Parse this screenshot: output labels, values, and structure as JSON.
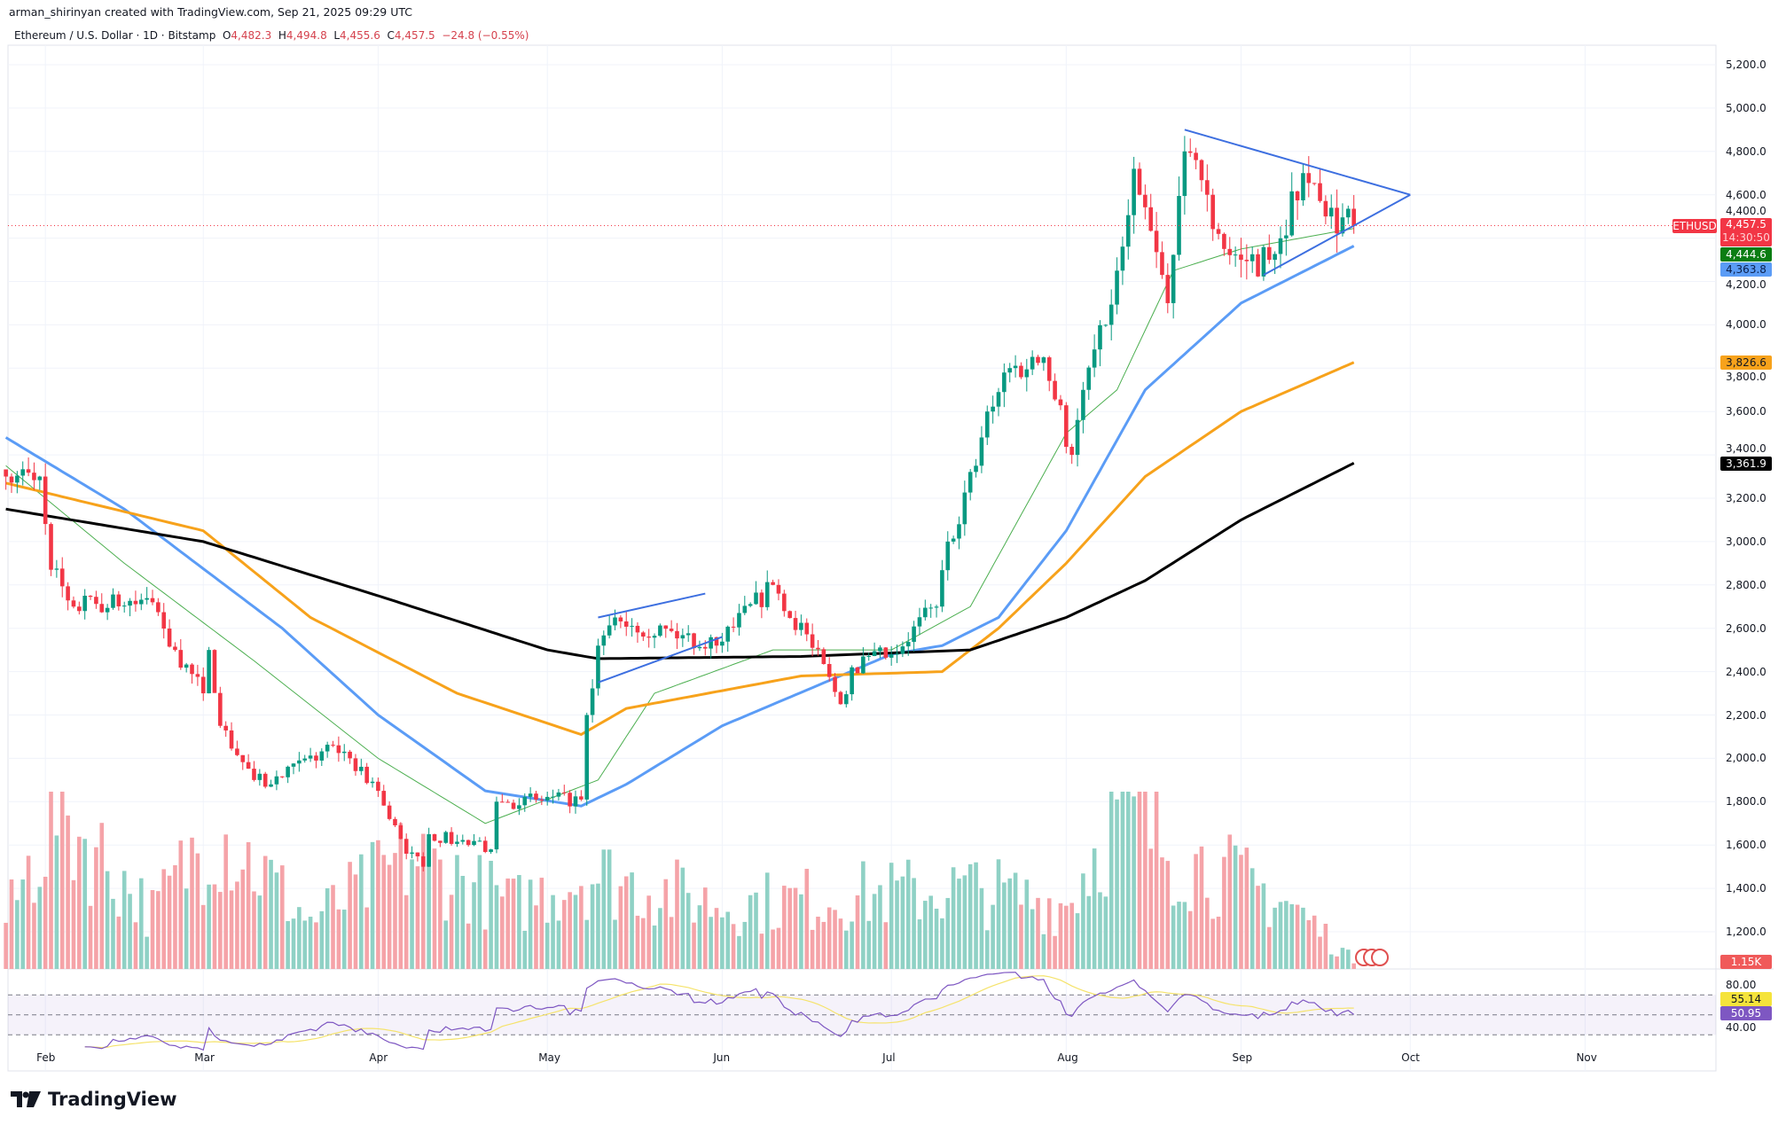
{
  "header": {
    "credit": "arman_shirinyan created with TradingView.com, Sep 21, 2025 09:29 UTC",
    "symbol": "Ethereum / U.S. Dollar · 1D · Bitstamp",
    "o_label": "O",
    "o": "4,482.3",
    "h_label": "H",
    "h": "4,494.8",
    "l_label": "L",
    "l": "4,455.6",
    "c_label": "C",
    "c": "4,457.5",
    "change": "−24.8 (−0.55%)"
  },
  "badges": {
    "ticker": "ETHUSD",
    "last": "4,457.5",
    "countdown": "14:30:50",
    "ma20": "4,444.6",
    "ma50": "4,363.8",
    "ma100": "3,826.6",
    "ma200": "3,361.9",
    "volume": "1.15K",
    "rsi_ma": "55.14",
    "rsi": "50.95"
  },
  "colors": {
    "up": "#089981",
    "down": "#f23645",
    "vol_up": "#8fd1c5",
    "vol_down": "#f5a3a8",
    "ma20": "#4caf50",
    "ma50": "#5b9cf6",
    "ma100": "#f7a21b",
    "ma200": "#000000",
    "trend": "#3d6fe0",
    "rsi": "#7e57c2",
    "rsi_ma": "#f5e36b"
  },
  "logo": "TradingView",
  "chart_data": {
    "type": "candlestick",
    "title": "Ethereum / U.S. Dollar · 1D · Bitstamp",
    "y_ticks": [
      "5,200.0",
      "5,000.0",
      "4,800.0",
      "4,600.0",
      "4,400.0",
      "4,200.0",
      "4,000.0",
      "3,800.0",
      "3,600.0",
      "3,400.0",
      "3,200.0",
      "3,000.0",
      "2,800.0",
      "2,600.0",
      "2,400.0",
      "2,200.0",
      "2,000.0",
      "1,800.0",
      "1,600.0",
      "1,400.0",
      "1,200.0"
    ],
    "ylim": [
      1100,
      5300
    ],
    "x_ticks": [
      {
        "label": "Feb",
        "date": "02-01"
      },
      {
        "label": "Mar",
        "date": "03-01"
      },
      {
        "label": "Apr",
        "date": "04-01"
      },
      {
        "label": "May",
        "date": "05-01"
      },
      {
        "label": "Jun",
        "date": "06-01"
      },
      {
        "label": "Jul",
        "date": "07-01"
      },
      {
        "label": "Aug",
        "date": "08-01"
      },
      {
        "label": "Sep",
        "date": "09-01"
      },
      {
        "label": "Oct",
        "date": "10-01"
      },
      {
        "label": "Nov",
        "date": "11-01"
      }
    ],
    "range": [
      "01-25",
      "09-21"
    ],
    "close_waypoints": [
      [
        "01-25",
        3300
      ],
      [
        "01-31",
        3300
      ],
      [
        "02-02",
        2870
      ],
      [
        "02-06",
        2700
      ],
      [
        "02-20",
        2720
      ],
      [
        "02-24",
        2500
      ],
      [
        "03-01",
        2300
      ],
      [
        "03-02",
        2500
      ],
      [
        "03-04",
        2150
      ],
      [
        "03-10",
        1900
      ],
      [
        "03-13",
        1880
      ],
      [
        "03-24",
        2060
      ],
      [
        "03-27",
        2000
      ],
      [
        "04-01",
        1850
      ],
      [
        "04-06",
        1560
      ],
      [
        "04-09",
        1500
      ],
      [
        "04-10",
        1650
      ],
      [
        "04-21",
        1580
      ],
      [
        "04-22",
        1800
      ],
      [
        "05-07",
        1810
      ],
      [
        "05-08",
        2200
      ],
      [
        "05-10",
        2520
      ],
      [
        "05-13",
        2650
      ],
      [
        "05-31",
        2520
      ],
      [
        "06-10",
        2800
      ],
      [
        "06-11",
        2760
      ],
      [
        "06-17",
        2510
      ],
      [
        "06-22",
        2250
      ],
      [
        "06-24",
        2420
      ],
      [
        "07-01",
        2480
      ],
      [
        "07-09",
        2700
      ],
      [
        "07-11",
        3000
      ],
      [
        "07-16",
        3350
      ],
      [
        "07-18",
        3600
      ],
      [
        "07-21",
        3780
      ],
      [
        "07-28",
        3850
      ],
      [
        "08-02",
        3400
      ],
      [
        "08-04",
        3700
      ],
      [
        "08-08",
        4000
      ],
      [
        "08-10",
        4250
      ],
      [
        "08-13",
        4720
      ],
      [
        "08-14",
        4600
      ],
      [
        "08-19",
        4100
      ],
      [
        "08-22",
        4800
      ],
      [
        "08-24",
        4760
      ],
      [
        "08-26",
        4600
      ],
      [
        "08-29",
        4350
      ],
      [
        "09-01",
        4300
      ],
      [
        "09-06",
        4300
      ],
      [
        "09-12",
        4700
      ],
      [
        "09-16",
        4500
      ],
      [
        "09-21",
        4457.5
      ]
    ],
    "ma_series": [
      {
        "name": "MA20",
        "color_key": "ma20",
        "points": [
          [
            "01-25",
            3350
          ],
          [
            "02-15",
            2900
          ],
          [
            "03-10",
            2450
          ],
          [
            "04-01",
            2000
          ],
          [
            "04-20",
            1700
          ],
          [
            "05-10",
            1900
          ],
          [
            "05-20",
            2300
          ],
          [
            "06-10",
            2500
          ],
          [
            "07-01",
            2500
          ],
          [
            "07-15",
            2700
          ],
          [
            "08-01",
            3500
          ],
          [
            "08-10",
            3700
          ],
          [
            "08-20",
            4250
          ],
          [
            "09-01",
            4350
          ],
          [
            "09-21",
            4444.6
          ]
        ]
      },
      {
        "name": "MA50",
        "color_key": "ma50",
        "points": [
          [
            "01-25",
            3480
          ],
          [
            "02-15",
            3150
          ],
          [
            "03-15",
            2600
          ],
          [
            "04-01",
            2200
          ],
          [
            "04-20",
            1850
          ],
          [
            "05-07",
            1780
          ],
          [
            "05-15",
            1880
          ],
          [
            "06-01",
            2150
          ],
          [
            "07-01",
            2480
          ],
          [
            "07-10",
            2520
          ],
          [
            "07-20",
            2650
          ],
          [
            "08-01",
            3050
          ],
          [
            "08-15",
            3700
          ],
          [
            "09-01",
            4100
          ],
          [
            "09-21",
            4363.8
          ]
        ]
      },
      {
        "name": "MA100",
        "color_key": "ma100",
        "points": [
          [
            "01-25",
            3270
          ],
          [
            "03-01",
            3050
          ],
          [
            "03-20",
            2650
          ],
          [
            "04-15",
            2300
          ],
          [
            "05-07",
            2110
          ],
          [
            "05-15",
            2230
          ],
          [
            "06-15",
            2380
          ],
          [
            "07-10",
            2400
          ],
          [
            "07-20",
            2600
          ],
          [
            "08-01",
            2900
          ],
          [
            "08-15",
            3300
          ],
          [
            "09-01",
            3600
          ],
          [
            "09-21",
            3826.6
          ]
        ]
      },
      {
        "name": "MA200",
        "color_key": "ma200",
        "points": [
          [
            "01-25",
            3150
          ],
          [
            "03-01",
            3000
          ],
          [
            "04-01",
            2750
          ],
          [
            "05-01",
            2500
          ],
          [
            "05-10",
            2460
          ],
          [
            "06-15",
            2470
          ],
          [
            "07-15",
            2500
          ],
          [
            "08-01",
            2650
          ],
          [
            "08-15",
            2820
          ],
          [
            "09-01",
            3100
          ],
          [
            "09-21",
            3361.9
          ]
        ]
      }
    ],
    "trendlines": [
      {
        "name": "triangle-upper",
        "from": [
          "08-22",
          4900
        ],
        "to": [
          "10-01",
          4600
        ]
      },
      {
        "name": "triangle-lower",
        "from": [
          "09-05",
          4230
        ],
        "to": [
          "10-01",
          4600
        ]
      },
      {
        "name": "channel-upper",
        "from": [
          "05-10",
          2650
        ],
        "to": [
          "05-29",
          2760
        ]
      },
      {
        "name": "channel-lower",
        "from": [
          "05-10",
          2350
        ],
        "to": [
          "06-01",
          2560
        ]
      }
    ],
    "volume_waypoints": [
      [
        "01-25",
        0.3
      ],
      [
        "02-03",
        1.0
      ],
      [
        "02-20",
        0.35
      ],
      [
        "03-03",
        0.9
      ],
      [
        "03-20",
        0.3
      ],
      [
        "04-07",
        0.7
      ],
      [
        "04-25",
        0.4
      ],
      [
        "05-08",
        0.6
      ],
      [
        "06-01",
        0.4
      ],
      [
        "06-22",
        0.45
      ],
      [
        "07-15",
        0.5
      ],
      [
        "08-01",
        0.4
      ],
      [
        "08-10",
        1.0
      ],
      [
        "08-22",
        0.7
      ],
      [
        "09-10",
        0.4
      ],
      [
        "09-21",
        0.05
      ]
    ],
    "rsi": {
      "levels": [
        80,
        40
      ],
      "labels": [
        "80.00",
        "40.00"
      ],
      "upper_band": 70,
      "lower_band": 30,
      "mid": 50,
      "last": 50.95,
      "ma_last": 55.14
    }
  }
}
